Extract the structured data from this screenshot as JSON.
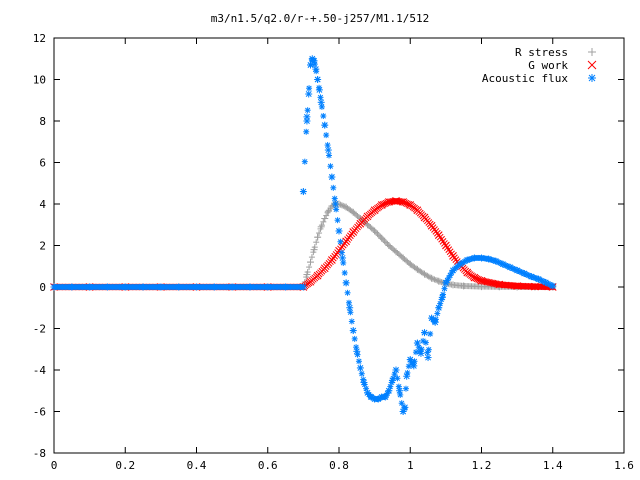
{
  "chart_data": {
    "type": "scatter",
    "title": "m3/n1.5/q2.0/r-+.50-j257/M1.1/512",
    "xlabel": "",
    "ylabel": "",
    "xlim": [
      0,
      1.6
    ],
    "ylim": [
      -8,
      12
    ],
    "xticks": [
      "0",
      "0.2",
      "0.4",
      "0.6",
      "0.8",
      "1",
      "1.2",
      "1.4",
      "1.6"
    ],
    "yticks": [
      "12",
      "10",
      "8",
      "6",
      "4",
      "2",
      "0",
      "-2",
      "-4",
      "-6",
      "-8"
    ],
    "grid": false,
    "legend_position": "top-right",
    "series": [
      {
        "name": "R stress",
        "marker": "plus",
        "color": "#a0a0a0",
        "x": [
          0.0,
          0.1,
          0.2,
          0.3,
          0.4,
          0.5,
          0.6,
          0.7,
          0.71,
          0.72,
          0.73,
          0.74,
          0.75,
          0.76,
          0.77,
          0.78,
          0.79,
          0.8,
          0.82,
          0.84,
          0.86,
          0.88,
          0.9,
          0.92,
          0.94,
          0.96,
          0.98,
          1.0,
          1.02,
          1.04,
          1.06,
          1.08,
          1.1,
          1.12,
          1.15,
          1.2,
          1.25,
          1.3,
          1.35,
          1.4
        ],
        "y": [
          0,
          0,
          0,
          0,
          0,
          0,
          0,
          0,
          0.6,
          1.2,
          1.8,
          2.4,
          2.9,
          3.3,
          3.65,
          3.9,
          4.0,
          4.0,
          3.85,
          3.6,
          3.3,
          3.0,
          2.7,
          2.35,
          2.0,
          1.7,
          1.4,
          1.1,
          0.85,
          0.62,
          0.42,
          0.28,
          0.17,
          0.1,
          0.05,
          0.02,
          0.01,
          0.0,
          0.0,
          0.0
        ]
      },
      {
        "name": "G work",
        "marker": "cross",
        "color": "#ff0000",
        "x": [
          0.0,
          0.1,
          0.2,
          0.3,
          0.4,
          0.5,
          0.6,
          0.7,
          0.72,
          0.74,
          0.76,
          0.78,
          0.8,
          0.82,
          0.84,
          0.86,
          0.88,
          0.9,
          0.92,
          0.94,
          0.96,
          0.98,
          1.0,
          1.02,
          1.04,
          1.06,
          1.08,
          1.1,
          1.12,
          1.14,
          1.16,
          1.18,
          1.2,
          1.25,
          1.3,
          1.35,
          1.4
        ],
        "y": [
          0,
          0,
          0,
          0,
          0,
          0,
          0,
          0,
          0.25,
          0.55,
          0.9,
          1.3,
          1.75,
          2.2,
          2.65,
          3.05,
          3.4,
          3.7,
          3.95,
          4.1,
          4.15,
          4.1,
          3.95,
          3.7,
          3.35,
          2.95,
          2.5,
          2.0,
          1.5,
          1.05,
          0.7,
          0.45,
          0.3,
          0.12,
          0.05,
          0.02,
          0.0
        ]
      },
      {
        "name": "Acoustic flux",
        "marker": "star",
        "color": "#0080ff",
        "x": [
          0.0,
          0.05,
          0.1,
          0.15,
          0.2,
          0.25,
          0.3,
          0.35,
          0.4,
          0.45,
          0.5,
          0.55,
          0.6,
          0.65,
          0.7,
          0.7,
          0.71,
          0.71,
          0.715,
          0.72,
          0.725,
          0.73,
          0.735,
          0.74,
          0.745,
          0.75,
          0.76,
          0.77,
          0.78,
          0.79,
          0.8,
          0.81,
          0.82,
          0.83,
          0.84,
          0.85,
          0.86,
          0.87,
          0.88,
          0.89,
          0.9,
          0.91,
          0.92,
          0.93,
          0.94,
          0.95,
          0.96,
          0.97,
          0.98,
          0.985,
          0.99,
          1.0,
          1.01,
          1.02,
          1.03,
          1.04,
          1.05,
          1.06,
          1.07,
          1.08,
          1.09,
          1.1,
          1.12,
          1.14,
          1.16,
          1.18,
          1.2,
          1.22,
          1.24,
          1.26,
          1.28,
          1.3,
          1.32,
          1.34,
          1.36,
          1.38,
          1.4
        ],
        "y": [
          0,
          0,
          0,
          0,
          0,
          0,
          0,
          0,
          0,
          0,
          0,
          0,
          0,
          0,
          0,
          4.6,
          8.2,
          8.0,
          9.3,
          10.7,
          11.0,
          10.9,
          10.5,
          10.0,
          9.5,
          8.9,
          7.8,
          6.6,
          5.3,
          4.0,
          2.7,
          1.4,
          0.2,
          -1.0,
          -2.1,
          -3.1,
          -3.9,
          -4.6,
          -5.1,
          -5.3,
          -5.4,
          -5.4,
          -5.3,
          -5.3,
          -5.0,
          -4.5,
          -4.0,
          -5.0,
          -6.0,
          -5.8,
          -4.3,
          -3.5,
          -3.8,
          -2.7,
          -3.2,
          -2.2,
          -3.4,
          -1.5,
          -1.7,
          -1.0,
          -0.5,
          0.2,
          0.8,
          1.1,
          1.3,
          1.4,
          1.4,
          1.35,
          1.25,
          1.1,
          0.95,
          0.8,
          0.65,
          0.5,
          0.38,
          0.22,
          0.05
        ]
      }
    ]
  }
}
